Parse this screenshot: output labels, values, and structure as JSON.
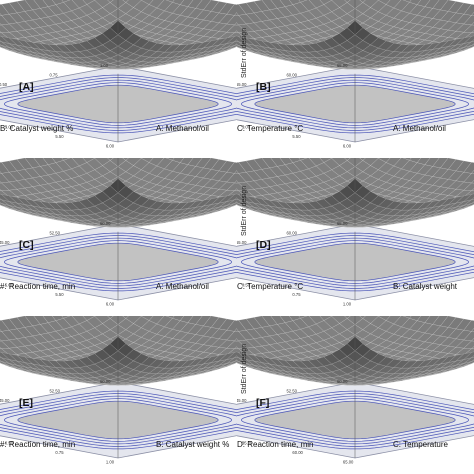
{
  "chart_data": [
    {
      "type": "surface-3d",
      "panel_label": "[A]",
      "xlabel": "B: Catalyst weight %",
      "ylabel": "A: Methanol/oil",
      "zlabel": "",
      "z_ticks": [
        "0.641106",
        "0.571024",
        "0.486942",
        "0.432861",
        "0.326779"
      ],
      "x_ticks": [
        "1.00",
        "0.75",
        "0.50",
        "0.25",
        "0.00"
      ],
      "y_ticks": [
        "4.00",
        "4.50",
        "5.00",
        "5.50",
        "6.00"
      ],
      "contour_levels": 5
    },
    {
      "type": "surface-3d",
      "panel_label": "[B]",
      "xlabel": "C: Temperature °C",
      "ylabel": "A: Methanol/oil",
      "zlabel": "StdErr of design",
      "z_ticks": [
        "0.641106",
        "0.571024",
        "0.486942",
        "0.432861",
        "0.326779"
      ],
      "x_ticks": [
        "65.00",
        "60.00",
        "55.00",
        "50.00",
        "45.00"
      ],
      "y_ticks": [
        "4.00",
        "4.50",
        "5.00",
        "5.50",
        "6.00"
      ],
      "contour_levels": 5
    },
    {
      "type": "surface-3d",
      "panel_label": "[C]",
      "xlabel": "#: Reaction time, min",
      "ylabel": "A: Methanol/oil",
      "zlabel": "",
      "z_ticks": [
        "0.641106",
        "0.571024",
        "0.486942",
        "0.432861",
        "0.326779"
      ],
      "x_ticks": [
        "60.00",
        "52.50",
        "45.00",
        "37.50",
        "30.00"
      ],
      "y_ticks": [
        "4.00",
        "4.50",
        "5.00",
        "5.50",
        "6.00"
      ],
      "contour_levels": 5
    },
    {
      "type": "surface-3d",
      "panel_label": "[D]",
      "xlabel": "C: Temperature °C",
      "ylabel": "B: Catalyst weight",
      "zlabel": "StdErr of design",
      "z_ticks": [
        "0.641106",
        "0.571024",
        "0.486942",
        "0.432861",
        "0.326779"
      ],
      "x_ticks": [
        "65.00",
        "60.00",
        "55.00",
        "50.00",
        "45.00"
      ],
      "y_ticks": [
        "0.00",
        "0.25",
        "0.50",
        "0.75",
        "1.00"
      ],
      "contour_levels": 5
    },
    {
      "type": "surface-3d",
      "panel_label": "[E]",
      "xlabel": "#: Reaction time, min",
      "ylabel": "B: Catalyst weight %",
      "zlabel": "",
      "z_ticks": [
        "0.641106",
        "0.571024",
        "0.486942",
        "0.432861",
        "0.326779"
      ],
      "x_ticks": [
        "60.00",
        "52.50",
        "45.00",
        "37.50",
        "30.00"
      ],
      "y_ticks": [
        "0.00",
        "0.25",
        "0.50",
        "0.75",
        "1.00"
      ],
      "contour_levels": 5
    },
    {
      "type": "surface-3d",
      "panel_label": "[F]",
      "xlabel": "D: Reaction time, min",
      "ylabel": "C: Temperature",
      "zlabel": "StdErr of design",
      "z_ticks": [
        "0.641106",
        "0.571024",
        "0.486942",
        "0.432861",
        "0.326779"
      ],
      "x_ticks": [
        "60.00",
        "52.50",
        "45.00",
        "37.50",
        "30.00"
      ],
      "y_ticks": [
        "45.00",
        "50.00",
        "55.00",
        "60.00",
        "65.00"
      ],
      "contour_levels": 5
    }
  ],
  "colors": {
    "surface_dark": "#2a2a2a",
    "surface_light": "#cfcfcf",
    "mesh": "#f2f2f2",
    "floor": "#e4e6ee",
    "floor_edge": "#8c90a6",
    "contour": "#4a55b8",
    "contour_center": "#c2c2c2",
    "box": "#555555"
  }
}
